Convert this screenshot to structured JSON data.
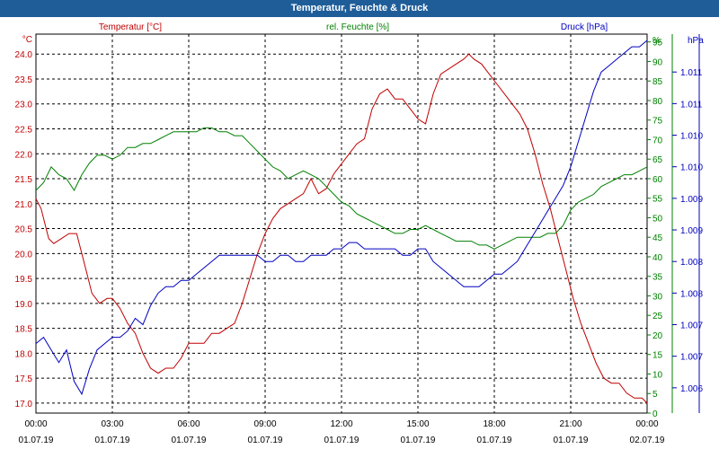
{
  "window": {
    "title": "Temperatur, Feuchte & Druck"
  },
  "colors": {
    "temperature": "#c00000",
    "humidity": "#008000",
    "pressure": "#0000c0",
    "titlebar": "#1f5d99"
  },
  "chart_data": {
    "type": "line",
    "title": "Temperatur, Feuchte & Druck",
    "x_ticks": [
      {
        "time": "00:00",
        "date": "01.07.19"
      },
      {
        "time": "03:00",
        "date": "01.07.19"
      },
      {
        "time": "06:00",
        "date": "01.07.19"
      },
      {
        "time": "09:00",
        "date": "01.07.19"
      },
      {
        "time": "12:00",
        "date": "01.07.19"
      },
      {
        "time": "15:00",
        "date": "01.07.19"
      },
      {
        "time": "18:00",
        "date": "01.07.19"
      },
      {
        "time": "21:00",
        "date": "01.07.19"
      },
      {
        "time": "00:00",
        "date": "02.07.19"
      }
    ],
    "xlim": [
      0,
      24
    ],
    "axes": {
      "temperature": {
        "label": "Temperatur [°C]",
        "unit": "°C",
        "ylim": [
          16.8,
          24.4
        ],
        "ticks": [
          "17.0",
          "17.5",
          "18.0",
          "18.5",
          "19.0",
          "19.5",
          "20.0",
          "20.5",
          "21.0",
          "21.5",
          "22.0",
          "22.5",
          "23.0",
          "23.5",
          "24.0"
        ]
      },
      "humidity": {
        "label": "rel. Feuchte [%]",
        "unit": "%",
        "ylim": [
          0,
          97
        ],
        "ticks": [
          "0",
          "5",
          "10",
          "15",
          "20",
          "25",
          "30",
          "35",
          "40",
          "45",
          "50",
          "55",
          "60",
          "65",
          "70",
          "75",
          "80",
          "85",
          "90",
          "95"
        ]
      },
      "pressure": {
        "label": "Druck [hPa]",
        "unit": "hPa",
        "ylim": [
          1005.6,
          1011.6
        ],
        "ticks": [
          "1.006",
          "1.007",
          "1.007",
          "1.008",
          "1.008",
          "1.009",
          "1.009",
          "1.010",
          "1.010",
          "1.011",
          "1.011"
        ]
      }
    },
    "series": [
      {
        "name": "Temperatur [°C]",
        "axis": "temperature",
        "x": [
          0,
          0.2,
          0.5,
          0.7,
          1.0,
          1.3,
          1.6,
          1.8,
          2.0,
          2.2,
          2.5,
          2.8,
          3.0,
          3.3,
          3.6,
          3.9,
          4.2,
          4.5,
          4.8,
          5.1,
          5.4,
          5.7,
          6.0,
          6.3,
          6.6,
          6.9,
          7.2,
          7.5,
          7.8,
          8.1,
          8.4,
          8.7,
          9.0,
          9.3,
          9.6,
          9.9,
          10.2,
          10.5,
          10.8,
          11.1,
          11.4,
          11.7,
          12.0,
          12.3,
          12.6,
          12.9,
          13.2,
          13.5,
          13.8,
          14.1,
          14.4,
          14.7,
          15.0,
          15.3,
          15.6,
          15.9,
          16.2,
          16.5,
          16.8,
          17.0,
          17.2,
          17.5,
          17.8,
          18.1,
          18.4,
          18.7,
          19.0,
          19.3,
          19.6,
          19.9,
          20.2,
          20.5,
          20.8,
          21.1,
          21.4,
          21.7,
          22.0,
          22.3,
          22.6,
          22.9,
          23.2,
          23.5,
          23.8,
          24.0
        ],
        "y": [
          21.1,
          20.9,
          20.3,
          20.2,
          20.3,
          20.4,
          20.4,
          20.0,
          19.6,
          19.2,
          19.0,
          19.1,
          19.1,
          18.9,
          18.6,
          18.4,
          18.0,
          17.7,
          17.6,
          17.7,
          17.7,
          17.9,
          18.2,
          18.2,
          18.2,
          18.4,
          18.4,
          18.5,
          18.6,
          19.0,
          19.5,
          20.0,
          20.4,
          20.7,
          20.9,
          21.0,
          21.1,
          21.2,
          21.5,
          21.2,
          21.3,
          21.6,
          21.8,
          22.0,
          22.2,
          22.3,
          22.9,
          23.2,
          23.3,
          23.1,
          23.1,
          22.9,
          22.7,
          22.6,
          23.2,
          23.6,
          23.7,
          23.8,
          23.9,
          24.0,
          23.9,
          23.8,
          23.6,
          23.4,
          23.2,
          23.0,
          22.8,
          22.5,
          22.0,
          21.4,
          20.9,
          20.3,
          19.7,
          19.1,
          18.6,
          18.2,
          17.8,
          17.5,
          17.4,
          17.4,
          17.2,
          17.1,
          17.1,
          17.0
        ]
      },
      {
        "name": "rel. Feuchte [%]",
        "axis": "humidity",
        "x": [
          0,
          0.3,
          0.6,
          0.9,
          1.2,
          1.5,
          1.8,
          2.1,
          2.4,
          2.7,
          3.0,
          3.3,
          3.6,
          3.9,
          4.2,
          4.5,
          4.8,
          5.1,
          5.4,
          5.7,
          6.0,
          6.3,
          6.6,
          6.9,
          7.2,
          7.5,
          7.8,
          8.1,
          8.4,
          8.7,
          9.0,
          9.3,
          9.6,
          9.9,
          10.2,
          10.5,
          10.8,
          11.1,
          11.4,
          11.7,
          12.0,
          12.3,
          12.6,
          12.9,
          13.2,
          13.5,
          13.8,
          14.1,
          14.4,
          14.7,
          15.0,
          15.3,
          15.6,
          15.9,
          16.2,
          16.5,
          16.8,
          17.1,
          17.4,
          17.7,
          18.0,
          18.3,
          18.6,
          18.9,
          19.2,
          19.5,
          19.8,
          20.1,
          20.4,
          20.7,
          21.0,
          21.3,
          21.6,
          21.9,
          22.2,
          22.5,
          22.8,
          23.1,
          23.4,
          23.7,
          24.0
        ],
        "y": [
          57,
          59,
          63,
          61,
          60,
          57,
          61,
          64,
          66,
          66,
          65,
          66,
          68,
          68,
          69,
          69,
          70,
          71,
          72,
          72,
          72,
          72,
          73,
          73,
          72,
          72,
          71,
          71,
          69,
          67,
          65,
          63,
          62,
          60,
          61,
          62,
          61,
          60,
          58,
          56,
          54,
          53,
          51,
          50,
          49,
          48,
          47,
          46,
          46,
          47,
          47,
          48,
          47,
          46,
          45,
          44,
          44,
          44,
          43,
          43,
          42,
          43,
          44,
          45,
          45,
          45,
          45,
          46,
          46,
          48,
          52,
          54,
          55,
          56,
          58,
          59,
          60,
          61,
          61,
          62,
          63
        ]
      },
      {
        "name": "Druck [hPa]",
        "axis": "pressure",
        "x": [
          0,
          0.3,
          0.6,
          0.9,
          1.2,
          1.5,
          1.8,
          2.1,
          2.4,
          2.7,
          3.0,
          3.3,
          3.6,
          3.9,
          4.2,
          4.5,
          4.8,
          5.1,
          5.4,
          5.7,
          6.0,
          6.3,
          6.6,
          6.9,
          7.2,
          7.5,
          7.8,
          8.1,
          8.4,
          8.7,
          9.0,
          9.3,
          9.6,
          9.9,
          10.2,
          10.5,
          10.8,
          11.1,
          11.4,
          11.7,
          12.0,
          12.3,
          12.6,
          12.9,
          13.2,
          13.5,
          13.8,
          14.1,
          14.4,
          14.7,
          15.0,
          15.3,
          15.6,
          15.9,
          16.2,
          16.5,
          16.8,
          17.1,
          17.4,
          17.7,
          18.0,
          18.3,
          18.6,
          18.9,
          19.2,
          19.5,
          19.8,
          20.1,
          20.4,
          20.7,
          21.0,
          21.3,
          21.6,
          21.9,
          22.2,
          22.5,
          22.8,
          23.1,
          23.4,
          23.7,
          24.0
        ],
        "y": [
          1006.7,
          1006.8,
          1006.6,
          1006.4,
          1006.6,
          1006.1,
          1005.9,
          1006.3,
          1006.6,
          1006.7,
          1006.8,
          1006.8,
          1006.9,
          1007.1,
          1007.0,
          1007.3,
          1007.5,
          1007.6,
          1007.6,
          1007.7,
          1007.7,
          1007.8,
          1007.9,
          1008.0,
          1008.1,
          1008.1,
          1008.1,
          1008.1,
          1008.1,
          1008.1,
          1008.0,
          1008.0,
          1008.1,
          1008.1,
          1008.0,
          1008.0,
          1008.1,
          1008.1,
          1008.1,
          1008.2,
          1008.2,
          1008.3,
          1008.3,
          1008.2,
          1008.2,
          1008.2,
          1008.2,
          1008.2,
          1008.1,
          1008.1,
          1008.2,
          1008.2,
          1008.0,
          1007.9,
          1007.8,
          1007.7,
          1007.6,
          1007.6,
          1007.6,
          1007.7,
          1007.8,
          1007.8,
          1007.9,
          1008.0,
          1008.2,
          1008.4,
          1008.6,
          1008.8,
          1009.0,
          1009.2,
          1009.5,
          1009.9,
          1010.3,
          1010.7,
          1011.0,
          1011.1,
          1011.2,
          1011.3,
          1011.4,
          1011.4,
          1011.5
        ]
      }
    ]
  }
}
